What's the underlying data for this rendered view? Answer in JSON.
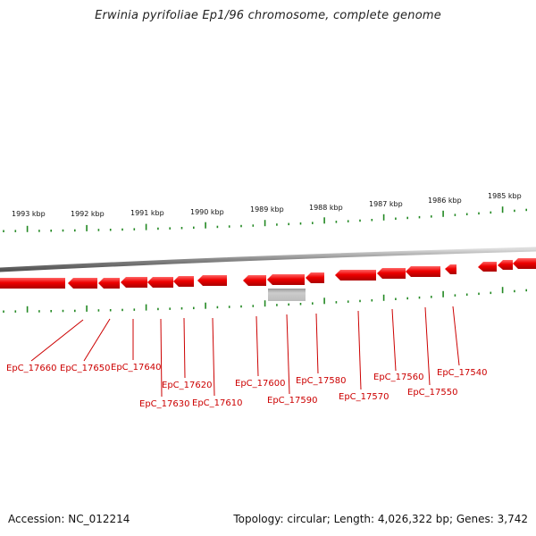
{
  "title": "Erwinia pyrifoliae Ep1/96 chromosome, complete genome",
  "footer": {
    "accession": "Accession: NC_012214",
    "summary": "Topology: circular; Length: 4,026,322 bp; Genes: 3,742"
  },
  "colors": {
    "gene": "#ee0000",
    "gene_highlight": "#ff5555",
    "tick": "#228822",
    "backbone": "#888888",
    "label": "#cc0000",
    "gray_feature": "#aaaaaa"
  },
  "scale_labels": [
    "1993 kbp",
    "1992 kbp",
    "1991 kbp",
    "1990 kbp",
    "1989 kbp",
    "1988 kbp",
    "1987 kbp",
    "1986 kbp",
    "1985 kbp"
  ],
  "gene_labels": [
    "EpC_17660",
    "EpC_17650",
    "EpC_17640",
    "EpC_17630",
    "EpC_17620",
    "EpC_17610",
    "EpC_17600",
    "EpC_17590",
    "EpC_17580",
    "EpC_17570",
    "EpC_17560",
    "EpC_17550",
    "EpC_17540"
  ]
}
